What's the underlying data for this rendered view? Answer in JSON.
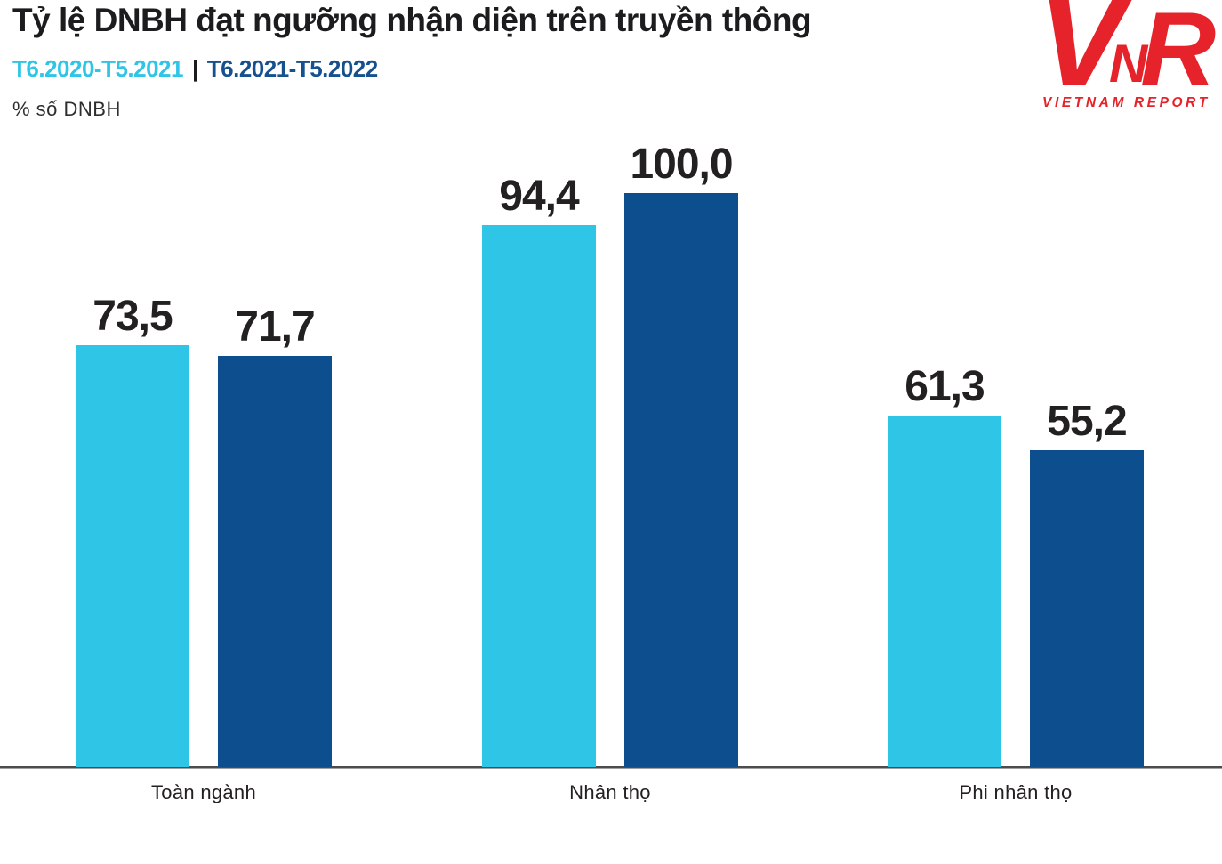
{
  "header": {
    "title": "Tỷ lệ DNBH đạt ngưỡng nhận diện trên truyền thông",
    "unit_label": "% số DNBH"
  },
  "legend": {
    "series1_label": "T6.2020-T5.2021",
    "separator": "|",
    "series2_label": "T6.2021-T5.2022"
  },
  "logo": {
    "letter_v": "V",
    "letter_n": "N",
    "letter_r": "R",
    "wordmark": "VIETNAM REPORT",
    "color": "#E6232A"
  },
  "colors": {
    "series1": "#2EC5E6",
    "series2": "#0D4E8F",
    "title_text": "#1C1B1D",
    "value_text": "#232022"
  },
  "chart_data": {
    "type": "bar",
    "title": "Tỷ lệ DNBH đạt ngưỡng nhận diện trên truyền thông",
    "ylabel": "% số DNBH",
    "categories": [
      "Toàn ngành",
      "Nhân thọ",
      "Phi nhân thọ"
    ],
    "series": [
      {
        "name": "T6.2020-T5.2021",
        "color": "#2EC5E6",
        "values": [
          73.5,
          94.4,
          61.3
        ],
        "labels": [
          "73,5",
          "94,4",
          "61,3"
        ]
      },
      {
        "name": "T6.2021-T5.2022",
        "color": "#0D4E8F",
        "values": [
          71.7,
          100.0,
          55.2
        ],
        "labels": [
          "71,7",
          "100,0",
          "55,2"
        ]
      }
    ],
    "ylim": [
      0,
      100
    ],
    "grid": false,
    "value_labels": "above bars, Vietnamese decimal comma",
    "legend_position": "top-left"
  }
}
